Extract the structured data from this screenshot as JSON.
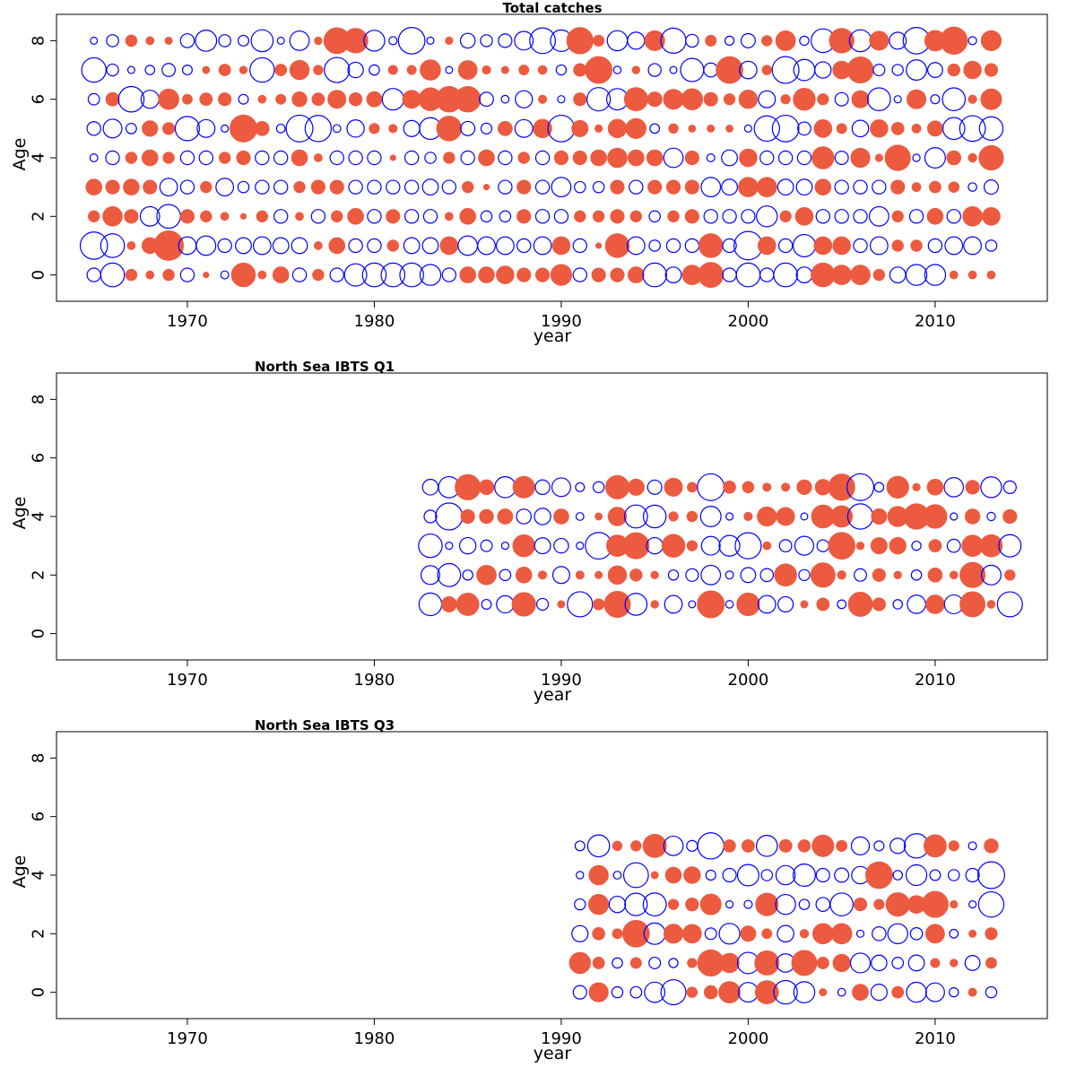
{
  "colors": {
    "positive": "#ec5a3f",
    "negative": "#0000ff",
    "axis": "#000000"
  },
  "chart_data": [
    {
      "type": "scatter",
      "subtype": "bubble-residuals",
      "title": "Total catches",
      "xlabel": "year",
      "ylabel": "Age",
      "xlim": [
        1963,
        2016
      ],
      "ylim": [
        -0.9,
        8.9
      ],
      "xticks": [
        1970,
        1980,
        1990,
        2000,
        2010
      ],
      "yticks": [
        0,
        2,
        4,
        6,
        8
      ],
      "ages": [
        0,
        1,
        2,
        3,
        4,
        5,
        6,
        7,
        8
      ],
      "years": [
        1965,
        2013
      ],
      "residuals": {
        "0": [
          -0.3,
          -0.9,
          0.2,
          0.1,
          0.2,
          -0.3,
          0.05,
          -0.1,
          0.9,
          0.1,
          0.4,
          -0.3,
          0.2,
          -0.3,
          -0.8,
          -0.9,
          -0.9,
          -0.9,
          -0.7,
          -0.3,
          0.4,
          0.4,
          0.5,
          0.3,
          0.3,
          0.7,
          -0.3,
          0.3,
          0.3,
          0.4,
          -0.9,
          -0.4,
          0.6,
          1.0,
          -0.3,
          -0.9,
          -0.3,
          -0.9,
          -0.4,
          0.9,
          0.6,
          0.6,
          0.2,
          -0.4,
          -0.7,
          -0.7,
          0.1,
          0.1,
          0.1
        ],
        "1": [
          -1.2,
          -0.9,
          0.1,
          0.4,
          1.4,
          -0.5,
          -0.6,
          -0.3,
          -0.4,
          -0.5,
          -0.4,
          -0.4,
          0.1,
          0.4,
          -0.3,
          -0.3,
          0.2,
          -0.4,
          -0.4,
          0.5,
          -0.6,
          -0.5,
          -0.5,
          -0.3,
          -0.5,
          0.5,
          -0.3,
          0.05,
          0.9,
          -0.5,
          -0.2,
          -0.3,
          -0.3,
          0.9,
          -0.3,
          -1.3,
          0.5,
          -0.3,
          -0.8,
          0.5,
          0.5,
          -0.3,
          -0.5,
          0.2,
          0.2,
          -0.3,
          -0.5,
          -0.5,
          -0.2
        ],
        "2": [
          0.2,
          0.6,
          0.3,
          -0.6,
          -0.9,
          0.3,
          0.2,
          0.1,
          0.05,
          0.2,
          -0.3,
          0.1,
          -0.3,
          0.2,
          0.4,
          -0.3,
          0.3,
          -0.3,
          -0.3,
          0.1,
          0.4,
          -0.2,
          -0.2,
          0.3,
          -0.3,
          -0.3,
          0.2,
          0.2,
          0.3,
          0.2,
          -0.2,
          0.2,
          0.3,
          -0.3,
          -0.3,
          -0.3,
          -0.7,
          0.2,
          0.5,
          -0.3,
          -0.3,
          -0.3,
          -0.6,
          0.2,
          -0.3,
          0.4,
          -0.3,
          0.6,
          0.5
        ],
        "3": [
          0.4,
          0.3,
          0.4,
          0.3,
          -0.5,
          -0.3,
          0.2,
          -0.5,
          -0.2,
          -0.3,
          -0.3,
          0.2,
          0.3,
          0.3,
          -0.3,
          -0.3,
          -0.3,
          -0.3,
          -0.4,
          -0.3,
          0.2,
          0.05,
          -0.3,
          0.3,
          -0.3,
          -0.6,
          -0.2,
          -0.2,
          0.3,
          -0.3,
          0.3,
          0.3,
          0.3,
          -0.6,
          -0.4,
          0.6,
          0.6,
          -0.4,
          -0.4,
          0.4,
          -0.3,
          -0.3,
          -0.3,
          0.3
        ],
        "4": [
          -0.1,
          -0.3,
          0.2,
          0.4,
          0.2,
          -0.3,
          -0.3,
          0.2,
          0.3,
          -0.3,
          -0.3,
          0.4,
          0.1,
          -0.3,
          -0.3,
          -0.3,
          0.05,
          -0.3,
          -0.2,
          0.2,
          -0.3,
          0.4,
          -0.3,
          0.2,
          -0.3,
          0.3,
          0.3,
          0.4,
          0.6,
          0.4,
          0.4,
          -0.6,
          0.3,
          -0.1,
          -0.4,
          0.5,
          -0.3,
          -0.3,
          -0.3
        ]
      },
      "note": "Circle area is proportional to |residual|; filled orange = positive, open blue = negative."
    },
    {
      "type": "scatter",
      "subtype": "bubble-residuals",
      "title": "North Sea IBTS Q1",
      "xlabel": "year",
      "ylabel": "Age",
      "xlim": [
        1963,
        2016
      ],
      "ylim": [
        -0.9,
        8.9
      ],
      "xticks": [
        1970,
        1980,
        1990,
        2000,
        2010
      ],
      "yticks": [
        0,
        2,
        4,
        6,
        8
      ],
      "ages": [
        1,
        2,
        3,
        4,
        5
      ],
      "years": [
        1983,
        2014
      ]
    },
    {
      "type": "scatter",
      "subtype": "bubble-residuals",
      "title": "North Sea IBTS Q3",
      "xlabel": "year",
      "ylabel": "Age",
      "xlim": [
        1963,
        2016
      ],
      "ylim": [
        -0.9,
        8.9
      ],
      "xticks": [
        1970,
        1980,
        1990,
        2000,
        2010
      ],
      "yticks": [
        0,
        2,
        4,
        6,
        8
      ],
      "ages": [
        0,
        1,
        2,
        3,
        4,
        5
      ],
      "years": [
        1991,
        2013
      ]
    }
  ]
}
